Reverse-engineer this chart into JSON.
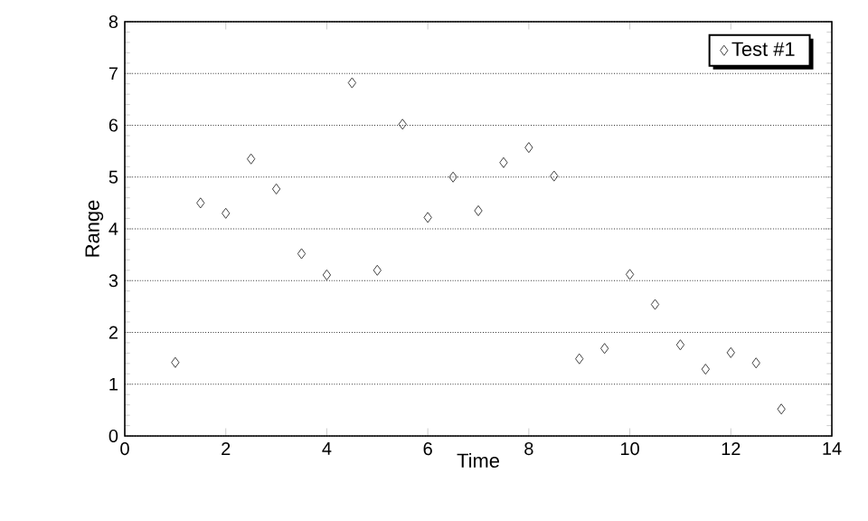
{
  "chart_data": {
    "type": "scatter",
    "xlabel": "Time",
    "ylabel": "Range",
    "xlim": [
      0,
      14
    ],
    "xticks": [
      0,
      2,
      4,
      6,
      8,
      10,
      12,
      14
    ],
    "ylim": [
      0,
      8
    ],
    "yticks": [
      0,
      1,
      2,
      3,
      4,
      5,
      6,
      7,
      8
    ],
    "grid": "y",
    "legend": "top right",
    "marker": "diamond",
    "series": [
      {
        "name": "Test #1",
        "color": "#404040",
        "x": [
          1,
          1.5,
          2,
          2.5,
          3,
          3.5,
          4,
          4.5,
          5,
          5.5,
          6,
          6.5,
          7,
          7.5,
          8,
          8.5,
          9,
          9.5,
          10,
          10.5,
          11,
          11.5,
          12,
          12.5,
          13
        ],
        "values": [
          1.42,
          4.5,
          4.3,
          5.35,
          4.77,
          3.52,
          3.11,
          6.82,
          3.2,
          6.02,
          4.22,
          5.0,
          4.35,
          5.28,
          5.57,
          5.02,
          1.49,
          1.69,
          3.12,
          2.54,
          1.76,
          1.29,
          1.61,
          1.41,
          0.52
        ]
      }
    ]
  }
}
